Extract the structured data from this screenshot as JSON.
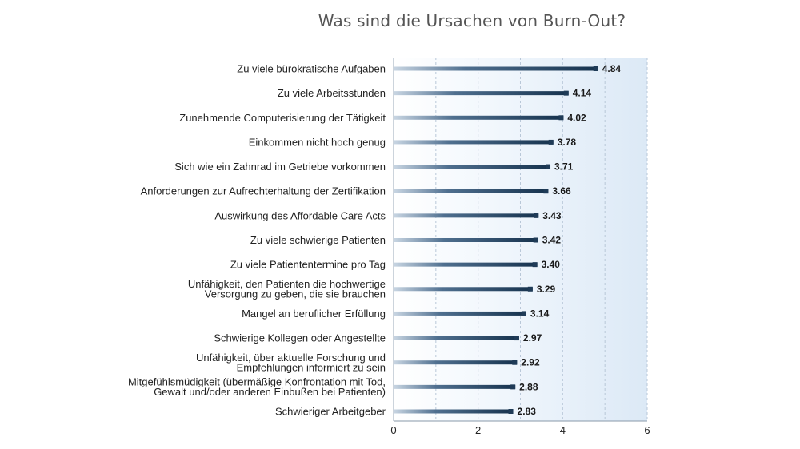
{
  "chart_data": {
    "type": "bar",
    "orientation": "horizontal",
    "title": "Was sind die Ursachen von Burn-Out?",
    "categories": [
      "Zu viele bürokratische Aufgaben",
      "Zu viele Arbeitsstunden",
      "Zunehmende Computerisierung der Tätigkeit",
      "Einkommen nicht hoch genug",
      "Sich wie ein Zahnrad im Getriebe vorkommen",
      "Anforderungen zur Aufrechterhaltung der Zertifikation",
      "Auswirkung des Affordable Care Acts",
      "Zu viele schwierige Patienten",
      "Zu viele Patiententermine pro Tag",
      "Unfähigkeit, den Patienten die hochwertige\nVersorgung zu geben, die sie brauchen",
      "Mangel an beruflicher Erfüllung",
      "Schwierige Kollegen oder Angestellte",
      "Unfähigkeit, über aktuelle Forschung und\nEmpfehlungen informiert zu sein",
      "Mitgefühlsmüdigkeit (übermäßige Konfrontation  mit Tod,\nGewalt und/oder anderen Einbußen bei Patienten)",
      "Schwieriger Arbeitgeber"
    ],
    "values": [
      4.84,
      4.14,
      4.02,
      3.78,
      3.71,
      3.66,
      3.43,
      3.42,
      3.4,
      3.29,
      3.14,
      2.97,
      2.92,
      2.88,
      2.83
    ],
    "value_labels": [
      "4.84",
      "4.14",
      "4.02",
      "3.78",
      "3.71",
      "3.66",
      "3.43",
      "3.42",
      "3.40",
      "3.29",
      "3.14",
      "2.97",
      "2.92",
      "2.88",
      "2.83"
    ],
    "xticks": [
      0,
      2,
      4,
      6
    ],
    "xlim": [
      0,
      6
    ],
    "grid": "vertical dashed",
    "colors": {
      "bar": "#1f3b57",
      "plot_background": "#e9f2fb",
      "grid": "#b9c8d8"
    }
  }
}
